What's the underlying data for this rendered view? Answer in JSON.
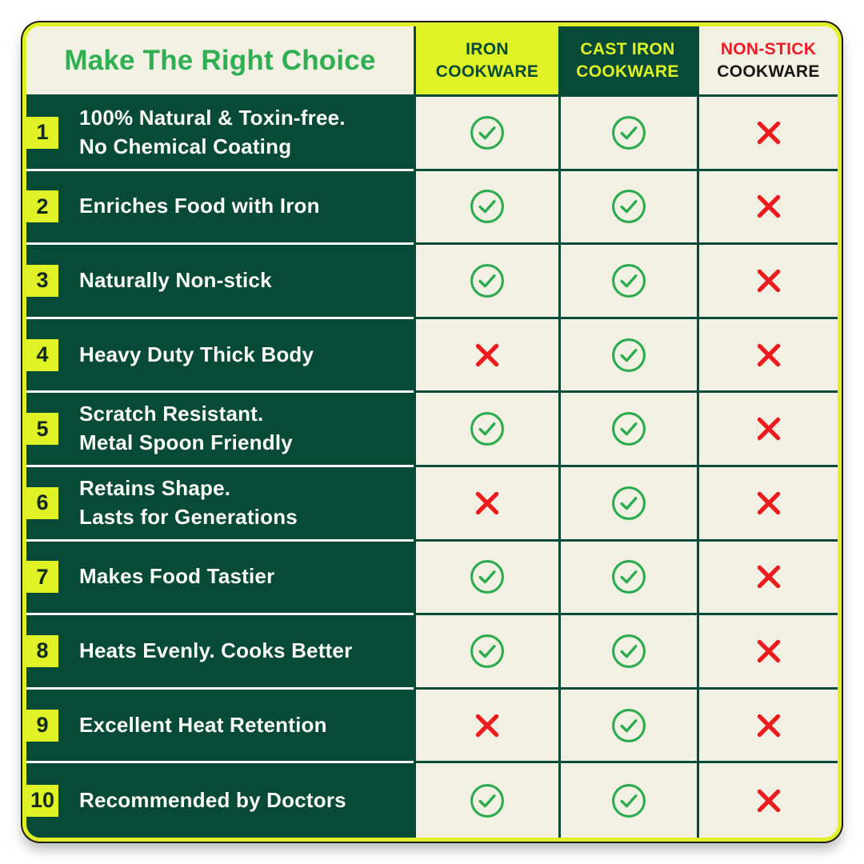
{
  "title": "Make The Right Choice",
  "colors": {
    "dark_green": "#074A38",
    "cream": "#F2F0E3",
    "yellow_green": "#DFF226",
    "title_green": "#2FAE52",
    "check_green": "#2BAA4E",
    "cross_red": "#EC1B1E",
    "header_red": "#ED1C24",
    "header_black": "#161616"
  },
  "columns": [
    {
      "id": "iron-cookware",
      "line1": "IRON",
      "line2": "COOKWARE"
    },
    {
      "id": "cast-iron-cookware",
      "line1": "CAST IRON",
      "line2": "COOKWARE"
    },
    {
      "id": "non-stick-cookware",
      "line1": "NON-STICK",
      "line2": "COOKWARE"
    }
  ],
  "icons": {
    "check": "check-circle-icon",
    "cross": "cross-icon"
  },
  "rows": [
    {
      "num": "1",
      "lines": [
        "100% Natural & Toxin-free.",
        "No Chemical Coating"
      ],
      "marks": [
        "check",
        "check",
        "cross"
      ]
    },
    {
      "num": "2",
      "lines": [
        "Enriches Food with Iron"
      ],
      "marks": [
        "check",
        "check",
        "cross"
      ]
    },
    {
      "num": "3",
      "lines": [
        "Naturally Non-stick"
      ],
      "marks": [
        "check",
        "check",
        "cross"
      ]
    },
    {
      "num": "4",
      "lines": [
        "Heavy Duty Thick Body"
      ],
      "marks": [
        "cross",
        "check",
        "cross"
      ]
    },
    {
      "num": "5",
      "lines": [
        "Scratch Resistant.",
        "Metal Spoon Friendly"
      ],
      "marks": [
        "check",
        "check",
        "cross"
      ]
    },
    {
      "num": "6",
      "lines": [
        "Retains Shape.",
        "Lasts for Generations"
      ],
      "marks": [
        "cross",
        "check",
        "cross"
      ]
    },
    {
      "num": "7",
      "lines": [
        "Makes Food Tastier"
      ],
      "marks": [
        "check",
        "check",
        "cross"
      ]
    },
    {
      "num": "8",
      "lines": [
        "Heats Evenly. Cooks Better"
      ],
      "marks": [
        "check",
        "check",
        "cross"
      ]
    },
    {
      "num": "9",
      "lines": [
        "Excellent Heat Retention"
      ],
      "marks": [
        "cross",
        "check",
        "cross"
      ]
    },
    {
      "num": "10",
      "lines": [
        "Recommended by Doctors"
      ],
      "marks": [
        "check",
        "check",
        "cross"
      ]
    }
  ]
}
